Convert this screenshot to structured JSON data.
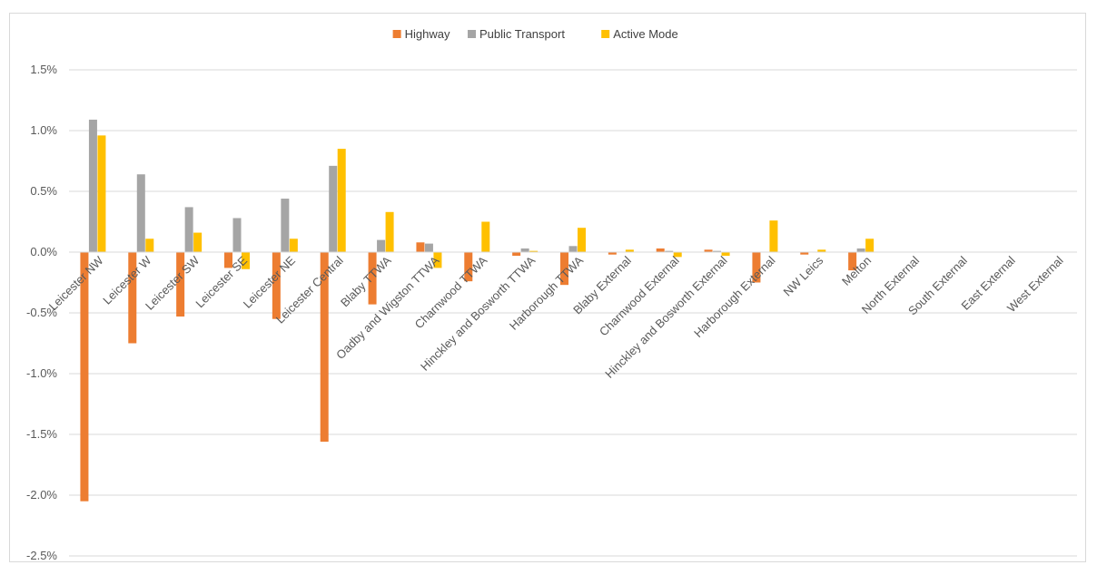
{
  "chart_data": {
    "type": "bar",
    "title": "",
    "xlabel": "",
    "ylabel": "",
    "ylim": [
      -0.025,
      0.015
    ],
    "y_ticks": [
      0.015,
      0.01,
      0.005,
      0.0,
      -0.005,
      -0.01,
      -0.015,
      -0.02,
      -0.025
    ],
    "y_tick_labels": [
      "1.5%",
      "1.0%",
      "0.5%",
      "0.0%",
      "-0.5%",
      "-1.0%",
      "-1.5%",
      "-2.0%",
      "-2.5%"
    ],
    "grid": true,
    "legend_position": "top",
    "categories": [
      "Leicester NW",
      "Leicester W",
      "Leicester SW",
      "Leicester SE",
      "Leicester NE",
      "Leicester Central",
      "Blaby TTWA",
      "Oadby and Wigston TTWA",
      "Charnwood TTWA",
      "Hinckley and Bosworth TTWA",
      "Harborough TTWA",
      "Blaby External",
      "Charnwood External",
      "Hinckley and Bosworth External",
      "Harborough External",
      "NW Leics",
      "Melton",
      "North External",
      "South External",
      "East External",
      "West External"
    ],
    "series": [
      {
        "name": "Highway",
        "color": "#ED7D31",
        "values": [
          -0.0205,
          -0.0075,
          -0.0053,
          -0.0013,
          -0.0055,
          -0.0156,
          -0.0043,
          0.0008,
          -0.0024,
          -0.0003,
          -0.0027,
          -0.0002,
          0.0003,
          0.0002,
          -0.0025,
          -0.0002,
          -0.0015,
          0,
          0,
          0,
          0
        ]
      },
      {
        "name": "Public Transport",
        "color": "#A5A5A5",
        "values": [
          0.0109,
          0.0064,
          0.0037,
          0.0028,
          0.0044,
          0.0071,
          0.001,
          0.0007,
          0.0,
          0.0003,
          0.0005,
          0.0,
          0.0001,
          0.0001,
          0.0,
          0.0,
          0.0003,
          0,
          0,
          0,
          0
        ]
      },
      {
        "name": "Active Mode",
        "color": "#FFC000",
        "values": [
          0.0096,
          0.0011,
          0.0016,
          -0.0014,
          0.0011,
          0.0085,
          0.0033,
          -0.0013,
          0.0025,
          0.0001,
          0.002,
          0.0002,
          -0.0004,
          -0.0003,
          0.0026,
          0.0002,
          0.0011,
          0,
          0,
          0,
          0
        ]
      }
    ]
  }
}
